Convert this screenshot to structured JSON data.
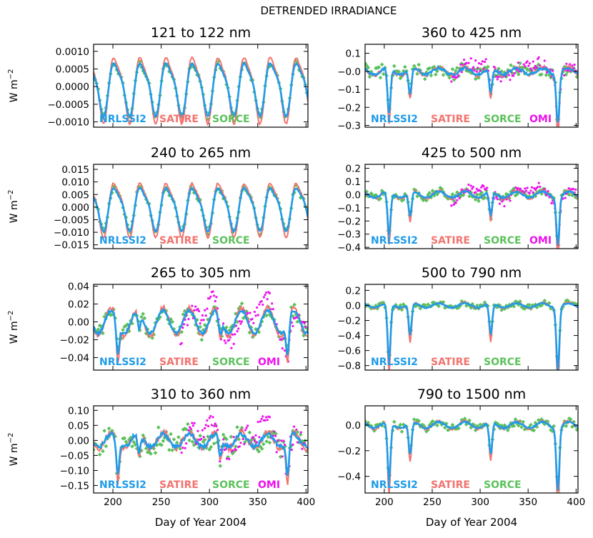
{
  "figure_title": "DETRENDED IRRADIANCE",
  "x_axis_label": "Day of Year 2004",
  "y_axis_label": "W m",
  "y_axis_label_exponent": "−2",
  "colors": {
    "NRLSSI2": "#1f9be8",
    "SATIRE": "#f2736e",
    "SORCE": "#5cc15c",
    "OMI": "#ee11ee"
  },
  "chart_data": [
    {
      "type": "line",
      "title": "121 to 122 nm",
      "xlim": [
        180,
        402
      ],
      "ylim": [
        -0.00115,
        0.0012
      ],
      "xticks": [
        200,
        250,
        300,
        350,
        400
      ],
      "xtick_labels": [
        "200",
        "250",
        "300",
        "350",
        "400"
      ],
      "yticks": [
        -0.001,
        -0.0005,
        0,
        0.0005,
        0.001
      ],
      "ytick_labels": [
        "−0.0010",
        "−0.0005",
        "0.0000",
        "0.0005",
        "0.0010"
      ],
      "legend": [
        "NRLSSI2",
        "SATIRE",
        "SORCE"
      ],
      "profile": "osc",
      "amp": 0.0007,
      "period": 27,
      "phase": 203,
      "dip": 0,
      "omi": false,
      "noise": 8e-05,
      "series": [
        "NRLSSI2",
        "SATIRE",
        "SORCE"
      ]
    },
    {
      "type": "line",
      "title": "360 to 425 nm",
      "xlim": [
        180,
        402
      ],
      "ylim": [
        -0.31,
        0.15
      ],
      "xticks": [
        200,
        250,
        300,
        350,
        400
      ],
      "xtick_labels": [
        "200",
        "250",
        "300",
        "350",
        "400"
      ],
      "yticks": [
        -0.3,
        -0.2,
        -0.1,
        0,
        0.1
      ],
      "ytick_labels": [
        "−0.3",
        "−0.2",
        "−0.1",
        "−0.0",
        "0.1"
      ],
      "legend": [
        "NRLSSI2",
        "SATIRE",
        "SORCE",
        "OMI"
      ],
      "profile": "dip",
      "amp": 0.03,
      "period": 27,
      "phase": 203,
      "dip": 0.25,
      "omi": true,
      "noise": 0.035,
      "series": [
        "NRLSSI2",
        "SATIRE",
        "SORCE",
        "OMI"
      ]
    },
    {
      "type": "line",
      "title": "240 to 265 nm",
      "xlim": [
        180,
        402
      ],
      "ylim": [
        -0.0165,
        0.017
      ],
      "xticks": [
        200,
        250,
        300,
        350,
        400
      ],
      "xtick_labels": [
        "200",
        "250",
        "300",
        "350",
        "400"
      ],
      "yticks": [
        -0.015,
        -0.01,
        -0.005,
        0,
        0.005,
        0.01,
        0.015
      ],
      "ytick_labels": [
        "−0.015",
        "−0.010",
        "−0.005",
        "0.000",
        "0.005",
        "0.010",
        "0.015"
      ],
      "legend": [
        "NRLSSI2",
        "SATIRE",
        "SORCE"
      ],
      "profile": "osc",
      "amp": 0.008,
      "period": 27,
      "phase": 203,
      "dip": 0,
      "omi": false,
      "noise": 0.0012,
      "series": [
        "NRLSSI2",
        "SATIRE",
        "SORCE"
      ]
    },
    {
      "type": "line",
      "title": "425 to 500 nm",
      "xlim": [
        180,
        402
      ],
      "ylim": [
        -0.41,
        0.23
      ],
      "xticks": [
        200,
        250,
        300,
        350,
        400
      ],
      "xtick_labels": [
        "200",
        "250",
        "300",
        "350",
        "400"
      ],
      "yticks": [
        -0.4,
        -0.3,
        -0.2,
        -0.1,
        0,
        0.1,
        0.2
      ],
      "ytick_labels": [
        "−0.4",
        "−0.3",
        "−0.2",
        "−0.1",
        "0.0",
        "0.1",
        "0.2"
      ],
      "legend": [
        "NRLSSI2",
        "SATIRE",
        "SORCE",
        "OMI"
      ],
      "profile": "dip",
      "amp": 0.04,
      "period": 27,
      "phase": 203,
      "dip": 0.33,
      "omi": true,
      "noise": 0.03,
      "series": [
        "NRLSSI2",
        "SATIRE",
        "SORCE",
        "OMI"
      ]
    },
    {
      "type": "line",
      "title": "265 to 305 nm",
      "xlim": [
        180,
        402
      ],
      "ylim": [
        -0.054,
        0.042
      ],
      "xticks": [
        200,
        250,
        300,
        350,
        400
      ],
      "xtick_labels": [
        "200",
        "250",
        "300",
        "350",
        "400"
      ],
      "yticks": [
        -0.04,
        -0.02,
        0,
        0.02,
        0.04
      ],
      "ytick_labels": [
        "−0.04",
        "−0.02",
        "0.00",
        "0.02",
        "0.04"
      ],
      "legend": [
        "NRLSSI2",
        "SATIRE",
        "SORCE",
        "OMI"
      ],
      "profile": "mixed",
      "amp": 0.015,
      "period": 27,
      "phase": 203,
      "dip": 0.035,
      "omi": true,
      "noise": 0.008,
      "series": [
        "NRLSSI2",
        "SATIRE",
        "SORCE",
        "OMI"
      ]
    },
    {
      "type": "line",
      "title": "500 to 790 nm",
      "xlim": [
        180,
        402
      ],
      "ylim": [
        -0.86,
        0.28
      ],
      "xticks": [
        200,
        250,
        300,
        350,
        400
      ],
      "xtick_labels": [
        "200",
        "250",
        "300",
        "350",
        "400"
      ],
      "yticks": [
        -0.8,
        -0.6,
        -0.4,
        -0.2,
        0,
        0.2
      ],
      "ytick_labels": [
        "−0.8",
        "−0.6",
        "−0.4",
        "−0.2",
        "0.0",
        "0.2"
      ],
      "legend": [
        "NRLSSI2",
        "SATIRE",
        "SORCE"
      ],
      "profile": "dip",
      "amp": 0.05,
      "period": 27,
      "phase": 203,
      "dip": 0.75,
      "omi": false,
      "noise": 0.04,
      "series": [
        "NRLSSI2",
        "SATIRE",
        "SORCE"
      ]
    },
    {
      "type": "line",
      "title": "310 to 360 nm",
      "xlim": [
        180,
        402
      ],
      "ylim": [
        -0.175,
        0.115
      ],
      "xticks": [
        200,
        250,
        300,
        350,
        400
      ],
      "xtick_labels": [
        "200",
        "250",
        "300",
        "350",
        "400"
      ],
      "yticks": [
        -0.15,
        -0.1,
        -0.05,
        0,
        0.05,
        0.1
      ],
      "ytick_labels": [
        "−0.15",
        "−0.10",
        "−0.05",
        "0.00",
        "0.05",
        "0.10"
      ],
      "legend": [
        "NRLSSI2",
        "SATIRE",
        "SORCE",
        "OMI"
      ],
      "profile": "mixed",
      "amp": 0.025,
      "period": 27,
      "phase": 203,
      "dip": 0.11,
      "omi": true,
      "noise": 0.035,
      "series": [
        "NRLSSI2",
        "SATIRE",
        "SORCE",
        "OMI"
      ]
    },
    {
      "type": "line",
      "title": "790 to 1500 nm",
      "xlim": [
        180,
        402
      ],
      "ylim": [
        -0.53,
        0.15
      ],
      "xticks": [
        200,
        250,
        300,
        350,
        400
      ],
      "xtick_labels": [
        "200",
        "250",
        "300",
        "350",
        "400"
      ],
      "yticks": [
        -0.4,
        -0.2,
        0
      ],
      "ytick_labels": [
        "−0.4",
        "−0.2",
        "0.0"
      ],
      "legend": [
        "NRLSSI2",
        "SATIRE",
        "SORCE"
      ],
      "profile": "dip",
      "amp": 0.04,
      "period": 27,
      "phase": 203,
      "dip": 0.45,
      "omi": false,
      "noise": 0.03,
      "series": [
        "NRLSSI2",
        "SATIRE",
        "SORCE"
      ]
    }
  ]
}
